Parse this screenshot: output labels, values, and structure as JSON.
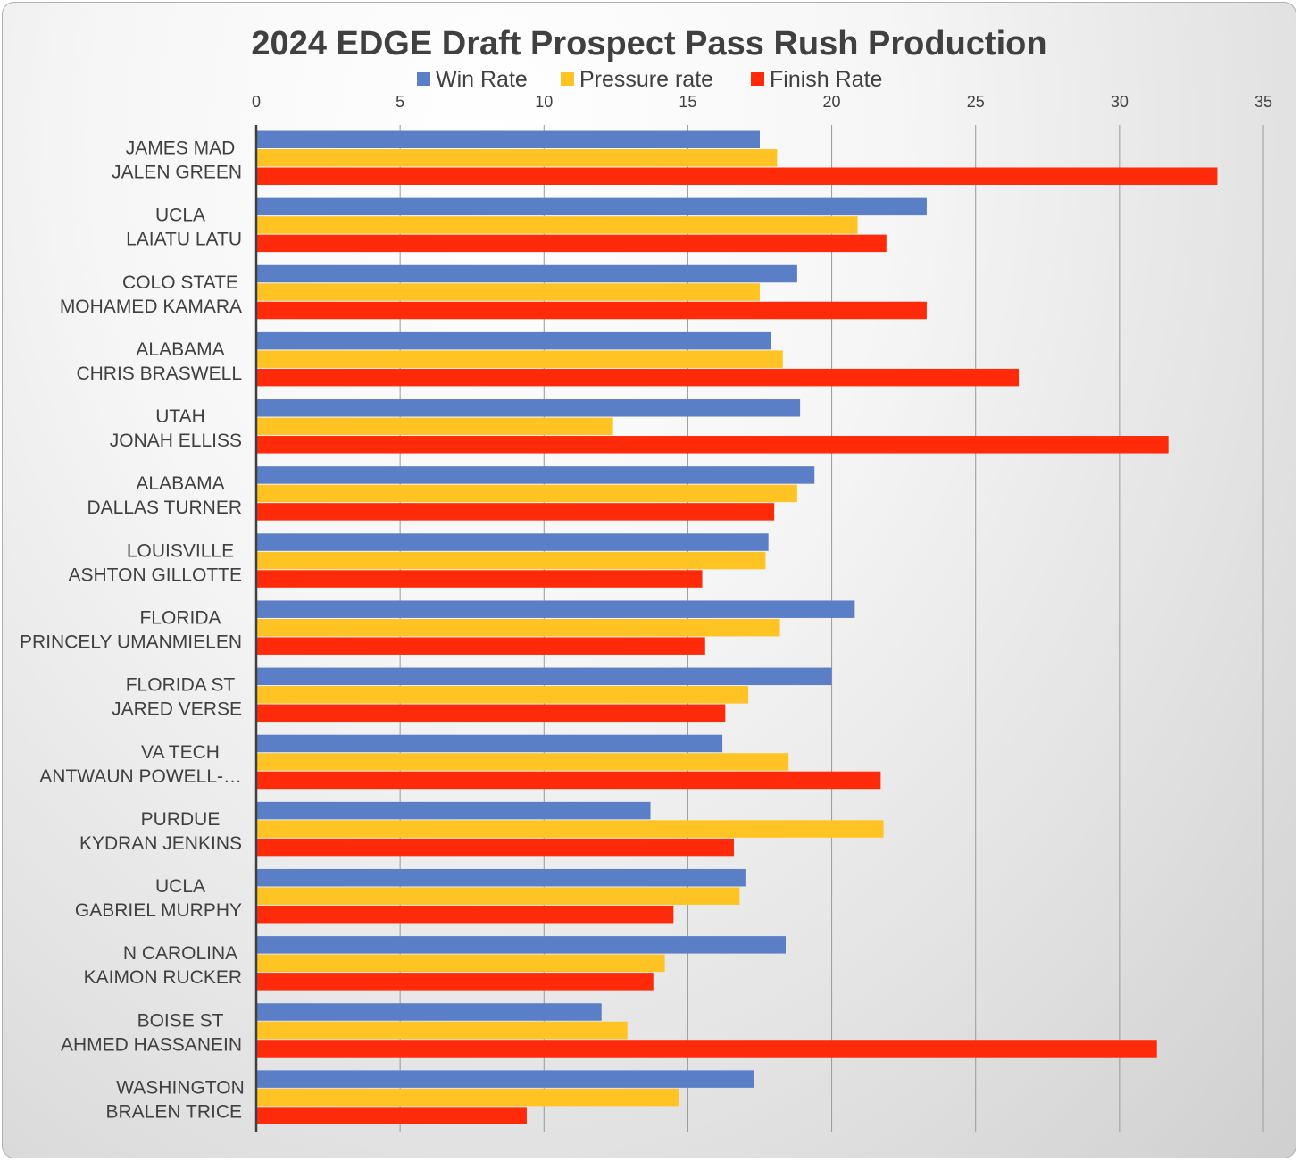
{
  "chart_data": {
    "type": "bar",
    "orientation": "horizontal",
    "title": "2024 EDGE Draft Prospect Pass Rush Production",
    "xlim": [
      0,
      35
    ],
    "xticks": [
      0,
      5,
      10,
      15,
      20,
      25,
      30,
      35
    ],
    "x_axis_position": "top",
    "grid": true,
    "legend_position": "top",
    "categories": [
      [
        "JAMES MAD",
        "JALEN GREEN"
      ],
      [
        "UCLA",
        "LAIATU LATU"
      ],
      [
        "COLO STATE",
        "MOHAMED KAMARA"
      ],
      [
        "ALABAMA",
        "CHRIS BRASWELL"
      ],
      [
        "UTAH",
        "JONAH ELLISS"
      ],
      [
        "ALABAMA",
        "DALLAS TURNER"
      ],
      [
        "LOUISVILLE",
        "ASHTON GILLOTTE"
      ],
      [
        "FLORIDA",
        "PRINCELY UMANMIELEN"
      ],
      [
        "FLORIDA ST",
        "JARED VERSE"
      ],
      [
        "VA TECH",
        "ANTWAUN POWELL-…"
      ],
      [
        "PURDUE",
        "KYDRAN JENKINS"
      ],
      [
        "UCLA",
        "GABRIEL MURPHY"
      ],
      [
        "N CAROLINA",
        "KAIMON RUCKER"
      ],
      [
        "BOISE ST",
        "AHMED HASSANEIN"
      ],
      [
        "WASHINGTON",
        "BRALEN TRICE"
      ]
    ],
    "series": [
      {
        "name": "Win Rate",
        "color": "#5B7FC7",
        "values": [
          17.5,
          23.3,
          18.8,
          17.9,
          18.9,
          19.4,
          17.8,
          20.8,
          20.0,
          16.2,
          13.7,
          17.0,
          18.4,
          12.0,
          17.3
        ]
      },
      {
        "name": "Pressure rate",
        "color": "#FFC423",
        "values": [
          18.1,
          20.9,
          17.5,
          18.3,
          12.4,
          18.8,
          17.7,
          18.2,
          17.1,
          18.5,
          21.8,
          16.8,
          14.2,
          12.9,
          14.7
        ]
      },
      {
        "name": "Finish Rate",
        "color": "#FF2A0A",
        "values": [
          33.4,
          21.9,
          23.3,
          26.5,
          31.7,
          18.0,
          15.5,
          15.6,
          16.3,
          21.7,
          16.6,
          14.5,
          13.8,
          31.3,
          9.4
        ]
      }
    ]
  }
}
